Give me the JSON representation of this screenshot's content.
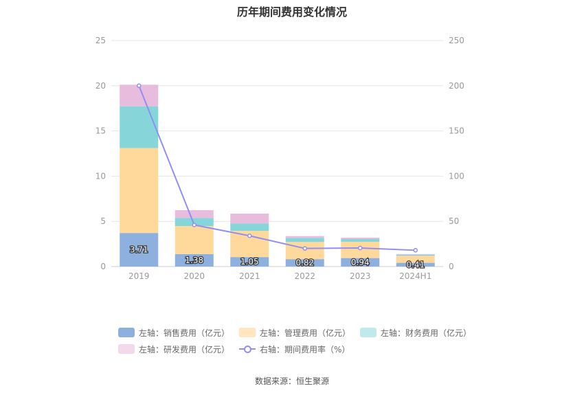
{
  "chart_data": {
    "type": "bar",
    "title": "历年期间费用变化情况",
    "categories": [
      "2019",
      "2020",
      "2021",
      "2022",
      "2023",
      "2024H1"
    ],
    "stacked": true,
    "left_axis": {
      "min": 0,
      "max": 25,
      "ticks": [
        "0",
        "5",
        "10",
        "15",
        "20",
        "25"
      ]
    },
    "right_axis": {
      "min": 0,
      "max": 250,
      "ticks": [
        "0",
        "50",
        "100",
        "150",
        "200",
        "250"
      ]
    },
    "series": [
      {
        "name": "左轴：销售费用（亿元）",
        "axis": "left",
        "color": "#8EB0DF",
        "values": [
          3.71,
          1.38,
          1.05,
          0.82,
          0.94,
          0.41
        ],
        "labels": [
          "3.71",
          "1.38",
          "1.05",
          "0.82",
          "0.94",
          "0.41"
        ]
      },
      {
        "name": "左轴：管理费用（亿元）",
        "axis": "left",
        "color": "#FFD99C",
        "values": [
          9.4,
          3.1,
          2.9,
          1.9,
          1.8,
          0.78
        ]
      },
      {
        "name": "左轴：财务费用（亿元）",
        "axis": "left",
        "color": "#86D6D9",
        "values": [
          4.6,
          0.9,
          0.8,
          0.45,
          0.3,
          0.12
        ]
      },
      {
        "name": "左轴：研发费用（亿元）",
        "axis": "left",
        "color": "#E8BCDD",
        "values": [
          2.4,
          0.85,
          1.1,
          0.2,
          0.15,
          0.07
        ]
      },
      {
        "name": "右轴：期间费用率（%）",
        "axis": "right",
        "type": "line",
        "color": "#8E8EF5",
        "values": [
          200,
          46,
          34,
          20,
          20.5,
          18
        ]
      }
    ],
    "legend_position": "bottom"
  },
  "legend": [
    {
      "label": "左轴：销售费用（亿元）",
      "color": "#8EB0DF",
      "kind": "bar"
    },
    {
      "label": "左轴：管理费用（亿元）",
      "color": "#FFE5C0",
      "kind": "bar"
    },
    {
      "label": "左轴：财务费用（亿元）",
      "color": "#BFE9EA",
      "kind": "bar"
    },
    {
      "label": "左轴：研发费用（亿元）",
      "color": "#F2D9EC",
      "kind": "bar"
    },
    {
      "label": "右轴：期间费用率（%）",
      "color": "#8E8EF5",
      "kind": "line"
    }
  ],
  "source": "数据来源：恒生聚源"
}
